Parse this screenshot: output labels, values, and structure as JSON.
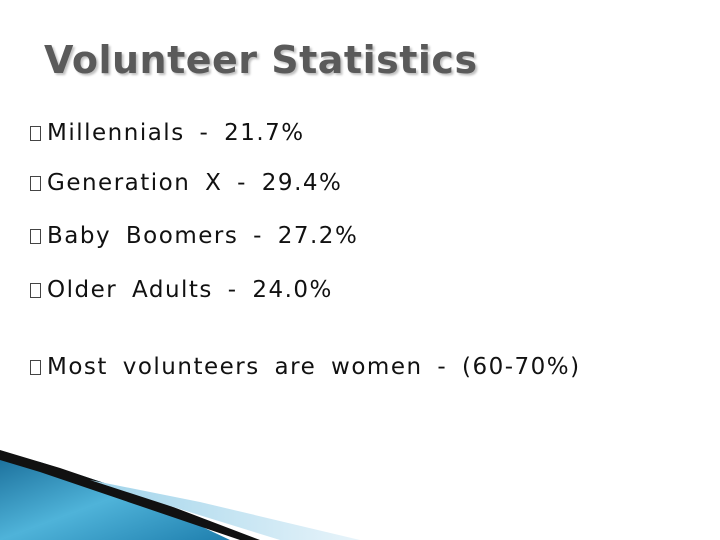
{
  "title": "Volunteer Statistics",
  "bullets": [
    "Millennials - 21.7%",
    "Generation X - 29.4%",
    "Baby Boomers - 27.2%",
    "Older Adults - 24.0%",
    "Most volunteers are women - (60-70%)"
  ]
}
